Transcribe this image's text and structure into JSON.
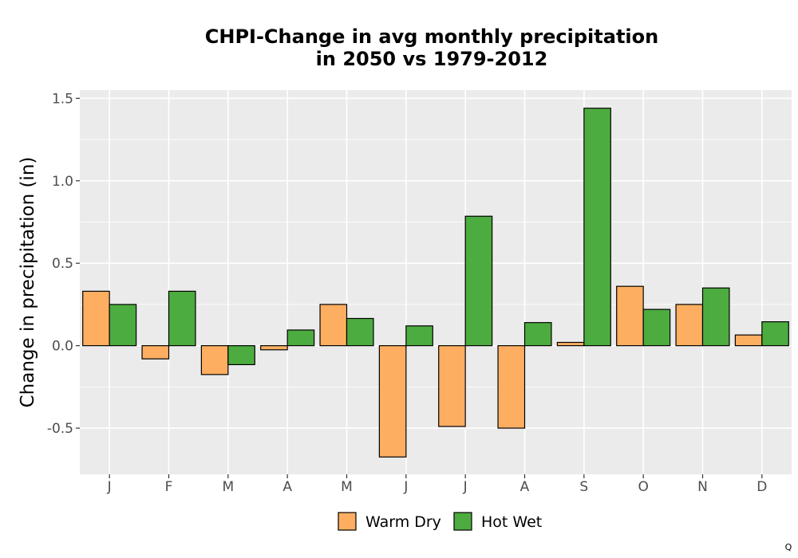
{
  "chart_data": {
    "type": "bar",
    "title_lines": [
      "CHPI-Change in avg monthly precipitation",
      "in 2050 vs 1979-2012"
    ],
    "xlabel": "",
    "ylabel": "Change in precipitation (in)",
    "categories": [
      "J",
      "F",
      "M",
      "A",
      "M",
      "J",
      "J",
      "A",
      "S",
      "O",
      "N",
      "D"
    ],
    "series": [
      {
        "name": "Warm Dry",
        "color": "#FDAE61",
        "values": [
          0.33,
          -0.08,
          -0.175,
          -0.025,
          0.25,
          -0.675,
          -0.49,
          -0.5,
          0.02,
          0.36,
          0.25,
          0.065
        ]
      },
      {
        "name": "Hot Wet",
        "color": "#4DAC3F",
        "values": [
          0.25,
          0.33,
          -0.115,
          0.095,
          0.165,
          0.12,
          0.785,
          0.14,
          1.44,
          0.22,
          0.35,
          0.145
        ]
      }
    ],
    "ylim": [
      -0.78,
      1.55
    ],
    "yticks": [
      -0.5,
      0.0,
      0.5,
      1.0,
      1.5
    ],
    "ytick_labels": [
      "-0.5",
      "0.0",
      "0.5",
      "1.0",
      "1.5"
    ],
    "grid": true,
    "legend_position": "bottom",
    "panel_color": "#EBEBEB",
    "corner_mark": "Q"
  }
}
